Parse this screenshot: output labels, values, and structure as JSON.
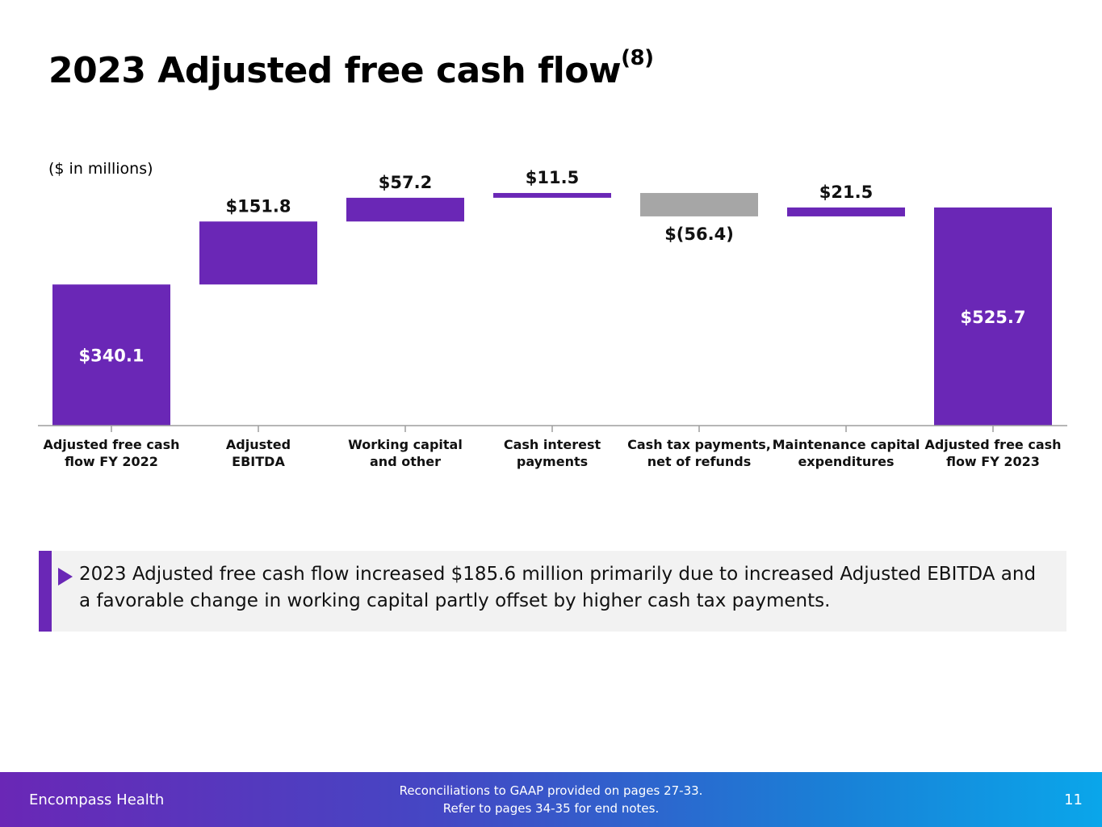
{
  "title": {
    "main": "2023 Adjusted free cash flow",
    "superscript": "(8)"
  },
  "units_note": "($ in millions)",
  "chart_data": {
    "type": "bar",
    "subtype": "waterfall",
    "categories": [
      [
        "Adjusted free cash",
        "flow FY 2022"
      ],
      [
        "Adjusted",
        "EBITDA"
      ],
      [
        "Working capital",
        "and other"
      ],
      [
        "Cash interest",
        "payments"
      ],
      [
        "Cash tax payments,",
        "net of refunds"
      ],
      [
        "Maintenance capital",
        "expenditures"
      ],
      [
        "Adjusted free cash",
        "flow FY 2023"
      ]
    ],
    "values": [
      340.1,
      151.8,
      57.2,
      11.5,
      -56.4,
      21.5,
      525.7
    ],
    "bar_kind": [
      "total",
      "delta",
      "delta",
      "delta",
      "delta",
      "delta",
      "total"
    ],
    "value_labels": [
      "$340.1",
      "$151.8",
      "$57.2",
      "$11.5",
      "$(56.4)",
      "$21.5",
      "$525.7"
    ],
    "colors": {
      "positive": "#6a27b6",
      "negative": "#a6a6a6",
      "total": "#6a27b6",
      "axis": "#9e9e9e"
    },
    "ylim": [
      0,
      580
    ],
    "title": "2023 Adjusted free cash flow",
    "ylabel": "($ in millions)",
    "xlabel": "",
    "grid": false,
    "legend": "none"
  },
  "callout": {
    "text": "2023 Adjusted free cash flow increased $185.6 million primarily due to increased Adjusted EBITDA and a favorable change in working capital partly offset by higher cash tax payments."
  },
  "footer": {
    "brand": "Encompass Health",
    "note_line1": "Reconciliations to GAAP provided on pages 27-33.",
    "note_line2": "Refer to pages 34-35 for end notes.",
    "page_number": "11"
  }
}
